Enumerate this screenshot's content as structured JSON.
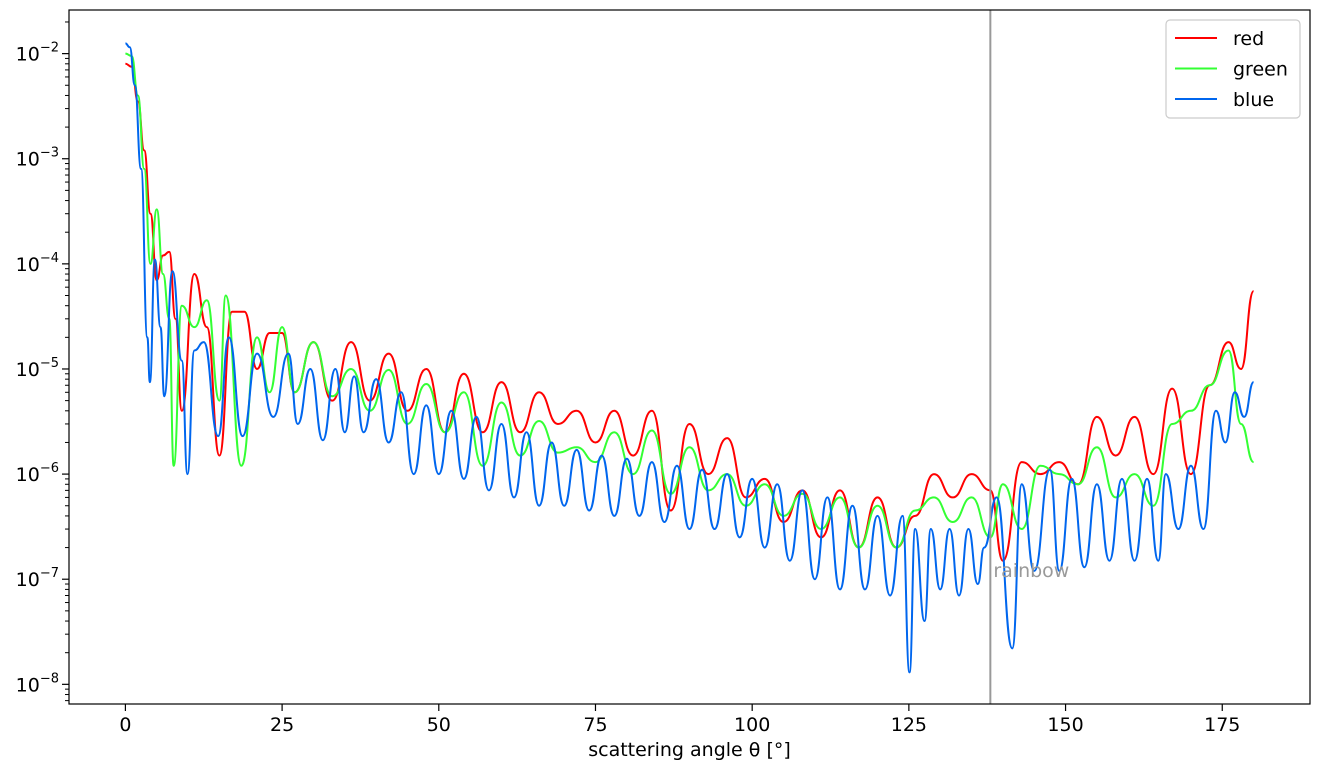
{
  "chart_data": {
    "type": "line",
    "xlabel": "scattering angle θ [°]",
    "ylabel": "",
    "title": "",
    "xlim": [
      -9,
      189
    ],
    "ylim": [
      6.5e-09,
      0.026
    ],
    "y_scale": "log",
    "x_ticks": [
      0,
      25,
      50,
      75,
      100,
      125,
      150,
      175
    ],
    "x_tick_labels": [
      "0",
      "25",
      "50",
      "75",
      "100",
      "125",
      "150",
      "175"
    ],
    "y_ticks": [
      1e-08,
      1e-07,
      1e-06,
      1e-05,
      0.0001,
      0.001,
      0.01
    ],
    "y_tick_labels": [
      {
        "base": "10",
        "exp": "−8"
      },
      {
        "base": "10",
        "exp": "−7"
      },
      {
        "base": "10",
        "exp": "−6"
      },
      {
        "base": "10",
        "exp": "−5"
      },
      {
        "base": "10",
        "exp": "−4"
      },
      {
        "base": "10",
        "exp": "−3"
      },
      {
        "base": "10",
        "exp": "−2"
      }
    ],
    "grid": false,
    "legend_position": "top-right",
    "annotations": [
      {
        "text": "rainbow",
        "x": 138,
        "color": "#999999",
        "type": "vertical-line"
      }
    ],
    "series": [
      {
        "name": "red",
        "color": "#ff0000",
        "x": [
          0,
          1,
          2,
          3,
          4,
          5,
          6,
          7,
          8,
          9,
          11,
          13,
          15,
          17,
          19,
          21,
          23,
          25,
          27,
          30,
          33,
          36,
          39,
          42,
          45,
          48,
          51,
          54,
          57,
          60,
          63,
          66,
          69,
          72,
          75,
          78,
          81,
          84,
          87,
          90,
          93,
          96,
          99,
          102,
          105,
          108,
          111,
          114,
          117,
          120,
          123,
          126,
          129,
          132,
          135,
          138,
          140,
          143,
          146,
          149,
          152,
          155,
          158,
          161,
          164,
          167,
          170,
          173,
          176,
          178,
          180
        ],
        "y": [
          0.008,
          0.0075,
          0.0035,
          0.0012,
          0.0003,
          7e-05,
          0.00012,
          0.00013,
          3e-05,
          4e-06,
          8e-05,
          2.5e-05,
          1.5e-06,
          3.5e-05,
          3.5e-05,
          1e-05,
          2.2e-05,
          2.2e-05,
          6e-06,
          1.8e-05,
          5e-06,
          1.8e-05,
          5e-06,
          1.4e-05,
          4e-06,
          1e-05,
          2.5e-06,
          9e-06,
          2.5e-06,
          7.5e-06,
          2.5e-06,
          6e-06,
          3e-06,
          4e-06,
          2e-06,
          4e-06,
          1.5e-06,
          4e-06,
          4.5e-07,
          3e-06,
          1e-06,
          2.2e-06,
          6e-07,
          9e-07,
          3.5e-07,
          7e-07,
          2.5e-07,
          7e-07,
          2e-07,
          6e-07,
          2e-07,
          4e-07,
          1e-06,
          6e-07,
          1e-06,
          7e-07,
          1.5e-07,
          1.3e-06,
          1e-06,
          1.3e-06,
          8e-07,
          3.5e-06,
          1.5e-06,
          3.5e-06,
          1e-06,
          6.5e-06,
          1e-06,
          7e-06,
          1.8e-05,
          1e-05,
          5.5e-05
        ]
      },
      {
        "name": "green",
        "color": "#33ff33",
        "x": [
          0,
          1,
          2,
          3,
          4,
          5,
          6,
          7,
          7.7,
          9,
          11,
          13,
          15,
          16,
          18.5,
          21,
          23,
          25,
          27,
          30,
          33,
          36,
          39,
          42,
          45,
          48,
          51,
          54,
          57,
          60,
          63,
          66,
          69,
          72,
          75,
          78,
          81,
          84,
          87,
          90,
          93,
          96,
          99,
          102,
          105,
          108,
          111,
          114,
          117,
          120,
          123,
          126,
          129,
          132,
          135,
          138,
          140,
          143,
          146,
          149,
          152,
          155,
          158,
          161,
          164,
          167,
          170,
          173,
          176,
          178,
          180
        ],
        "y": [
          0.01,
          0.0095,
          0.004,
          0.0008,
          0.0001,
          0.00033,
          8e-05,
          3e-05,
          1.2e-06,
          4e-05,
          2.5e-05,
          4.5e-05,
          5e-06,
          5e-05,
          1.2e-06,
          2e-05,
          6e-06,
          2.5e-05,
          6e-06,
          1.8e-05,
          5.5e-06,
          1e-05,
          4e-06,
          9.8e-06,
          3e-06,
          7.2e-06,
          2.5e-06,
          6e-06,
          1.2e-06,
          4.8e-06,
          1.5e-06,
          3.2e-06,
          1.6e-06,
          1.8e-06,
          1.3e-06,
          2.5e-06,
          1e-06,
          2.6e-06,
          6.5e-07,
          1.8e-06,
          7e-07,
          1e-06,
          5e-07,
          8e-07,
          4e-07,
          6.5e-07,
          3e-07,
          6e-07,
          2e-07,
          5e-07,
          2e-07,
          4.5e-07,
          6e-07,
          3.5e-07,
          6e-07,
          2.5e-07,
          8e-07,
          3e-07,
          1.2e-06,
          1e-06,
          8e-07,
          1.8e-06,
          6e-07,
          1e-06,
          5e-07,
          3e-06,
          4e-06,
          7e-06,
          1.5e-05,
          3e-06,
          1.3e-06
        ]
      },
      {
        "name": "blue",
        "color": "#0066ee",
        "x": [
          0,
          0.7,
          1.5,
          2.5,
          3.5,
          3.9,
          4.7,
          5.6,
          6.2,
          7.5,
          9,
          9.9,
          11,
          12.5,
          14.8,
          16.5,
          18.7,
          21,
          23.6,
          26,
          27.5,
          29.5,
          31.5,
          33.5,
          35,
          36.5,
          38,
          40,
          42,
          44,
          46,
          48,
          50,
          52,
          54,
          56,
          58,
          60,
          62,
          64,
          66,
          68,
          70,
          72,
          74,
          76,
          78,
          80,
          82,
          84,
          86,
          88,
          90,
          92,
          94,
          96,
          98,
          100,
          102,
          104,
          106,
          108,
          110,
          112,
          114,
          116,
          118,
          120,
          122,
          124,
          125.1,
          126,
          127.5,
          128.5,
          130,
          131.5,
          133,
          134.5,
          136,
          137,
          139,
          141.5,
          143,
          145,
          147.5,
          149,
          151,
          153,
          155,
          157,
          159,
          161,
          163,
          164.8,
          166,
          168,
          170,
          172,
          174,
          175.5,
          177,
          178.5,
          180
        ],
        "y": [
          0.0125,
          0.0115,
          0.005,
          0.0008,
          2e-05,
          7.5e-06,
          0.00011,
          2.5e-05,
          5.5e-06,
          8.5e-05,
          1.2e-05,
          1e-06,
          1.5e-05,
          1.8e-05,
          2.3e-06,
          2e-05,
          2.3e-06,
          1.4e-05,
          3.5e-06,
          1.4e-05,
          3e-06,
          1e-05,
          2.1e-06,
          1e-05,
          2.5e-06,
          8.5e-06,
          2.5e-06,
          8e-06,
          2e-06,
          6e-06,
          1e-06,
          4.5e-06,
          1e-06,
          4e-06,
          9e-07,
          3.5e-06,
          7e-07,
          3e-06,
          6e-07,
          2.5e-06,
          5e-07,
          2e-06,
          5e-07,
          1.7e-06,
          4.5e-07,
          1.5e-06,
          4e-07,
          1.4e-06,
          4e-07,
          1.3e-06,
          3.5e-07,
          1.2e-06,
          3e-07,
          1.1e-06,
          3e-07,
          1e-06,
          2.5e-07,
          9e-07,
          2e-07,
          8e-07,
          1.5e-07,
          7e-07,
          1e-07,
          6e-07,
          8e-08,
          5e-07,
          8e-08,
          4e-07,
          7e-08,
          4e-07,
          1.3e-08,
          3e-07,
          4e-08,
          3e-07,
          8e-08,
          3e-07,
          7e-08,
          3e-07,
          9e-08,
          2e-07,
          6e-07,
          2.2e-08,
          8e-07,
          1.2e-07,
          1.1e-06,
          1.2e-07,
          9e-07,
          1.3e-07,
          8e-07,
          1.5e-07,
          9e-07,
          1.5e-07,
          9e-07,
          1.5e-07,
          1e-06,
          3e-07,
          1.2e-06,
          3e-07,
          4e-06,
          2e-06,
          6e-06,
          3.5e-06,
          7.5e-06
        ]
      }
    ]
  }
}
